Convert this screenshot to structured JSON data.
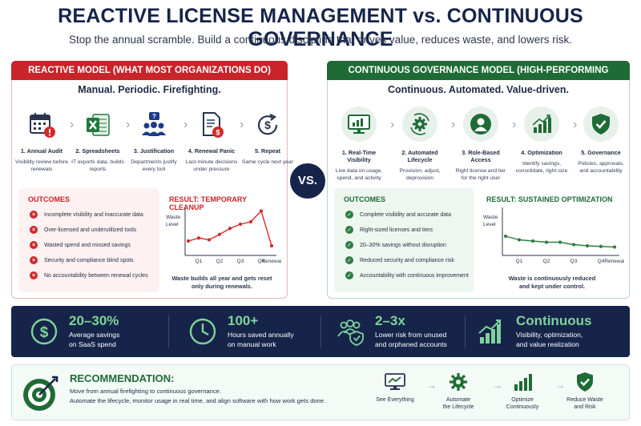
{
  "title": "REACTIVE LICENSE MANAGEMENT vs. CONTINUOUS GOVERNANCE",
  "subtitle": "Stop the annual scramble. Build a continuous discipline that drives value, reduces waste, and lowers risk.",
  "vs_label": "VS.",
  "reactive": {
    "header": "REACTIVE MODEL (WHAT MOST ORGANIZATIONS DO)",
    "tagline": "Manual. Periodic. Firefighting.",
    "steps": [
      {
        "title": "1. Annual Audit",
        "desc": "Visibility review before renewals",
        "icon": "calendar-alert-icon"
      },
      {
        "title": "2. Spreadsheets",
        "desc": "IT exports data, builds reports",
        "icon": "spreadsheet-icon"
      },
      {
        "title": "3. Justification",
        "desc": "Departments justify every tool",
        "icon": "question-team-icon"
      },
      {
        "title": "4. Renewal Panic",
        "desc": "Last-minute decisions under pressure",
        "icon": "invoice-dollar-icon"
      },
      {
        "title": "5. Repeat",
        "desc": "Same cycle next year",
        "icon": "dollar-cycle-icon"
      }
    ],
    "outcomes_title": "OUTCOMES",
    "outcomes": [
      "Incomplete visibility and inaccurate data",
      "Over-licensed and underutilized tools",
      "Wasted spend and missed savings",
      "Security and compliance blind spots",
      "No accountability between renewal cycles"
    ],
    "result_title": "RESULT: TEMPORARY CLEANUP",
    "result_caption_1": "Waste builds all year and gets reset",
    "result_caption_2": "only during renewals."
  },
  "continuous": {
    "header": "CONTINUOUS GOVERNANCE MODEL (HIGH-PERFORMING ORGANIZATIONS)",
    "tagline": "Continuous. Automated. Value-driven.",
    "steps": [
      {
        "title": "1. Real-Time Visibility",
        "desc": "Live data on usage, spend, and activity",
        "icon": "monitor-chart-icon"
      },
      {
        "title": "2. Automated Lifecycle",
        "desc": "Provision, adjust, deprovision",
        "icon": "gear-cycle-icon"
      },
      {
        "title": "3. Role-Based Access",
        "desc": "Right license and tier for the right user",
        "icon": "user-icon"
      },
      {
        "title": "4. Optimization",
        "desc": "Identify savings, consolidate, right-size",
        "icon": "growth-bars-icon"
      },
      {
        "title": "5. Governance",
        "desc": "Policies, approvals, and accountability",
        "icon": "shield-check-icon"
      }
    ],
    "outcomes_title": "OUTCOMES",
    "outcomes": [
      "Complete visibility and accurate data",
      "Right-sized licenses and tiers",
      "20–30% savings without disruption",
      "Reduced security and compliance risk",
      "Accountability with continuous improvement"
    ],
    "result_title": "RESULT: SUSTAINED OPTIMIZATION",
    "result_caption_1": "Waste is continuously reduced",
    "result_caption_2": "and kept under control."
  },
  "chart_data": [
    {
      "type": "line",
      "title": "RESULT: TEMPORARY CLEANUP",
      "ylabel": "Waste Level",
      "xlabel": "",
      "x": [
        "",
        "Q1",
        "",
        "Q2",
        "",
        "Q3",
        "",
        "Q4",
        "Renewal"
      ],
      "tick_labels": [
        "Q1",
        "Q2",
        "Q3",
        "Q4",
        "Renewal"
      ],
      "values": [
        2.4,
        2.9,
        2.6,
        3.5,
        4.5,
        5.2,
        5.6,
        7.4,
        1.6
      ],
      "ylim": [
        0,
        8
      ],
      "color": "#d42a2a"
    },
    {
      "type": "line",
      "title": "RESULT: SUSTAINED OPTIMIZATION",
      "ylabel": "Waste Level",
      "xlabel": "",
      "x": [
        "",
        "Q1",
        "",
        "Q2",
        "",
        "Q3",
        "",
        "Q4",
        "Renewal"
      ],
      "tick_labels": [
        "Q1",
        "Q2",
        "Q3",
        "Q4",
        "Renewal"
      ],
      "values": [
        3.2,
        2.6,
        2.4,
        2.2,
        2.2,
        1.8,
        1.6,
        1.5,
        1.4
      ],
      "ylim": [
        0,
        8
      ],
      "color": "#2e7d43"
    }
  ],
  "stats": [
    {
      "value": "20–30%",
      "label_1": "Average savings",
      "label_2": "on SaaS spend",
      "icon": "dollar-circle-icon"
    },
    {
      "value": "100+",
      "label_1": "Hours saved annually",
      "label_2": "on manual work",
      "icon": "clock-icon"
    },
    {
      "value": "2–3x",
      "label_1": "Lower risk from unused",
      "label_2": "and orphaned accounts",
      "icon": "team-shield-icon"
    },
    {
      "value": "Continuous",
      "label_1": "Visibility, optimization,",
      "label_2": "and value realization",
      "icon": "trend-bars-icon"
    }
  ],
  "recommendation": {
    "heading": "RECOMMENDATION:",
    "line_1": "Move from annual firefighting to continuous governance.",
    "line_2": "Automate the lifecycle, monitor usage in real time, and align software with how work gets done.",
    "flow": [
      {
        "label_1": "See Everything",
        "label_2": "",
        "icon": "monitor-icon"
      },
      {
        "label_1": "Automate",
        "label_2": "the Lifecycle",
        "icon": "gear-icon"
      },
      {
        "label_1": "Optimize",
        "label_2": "Continuously",
        "icon": "bars-icon"
      },
      {
        "label_1": "Reduce Waste",
        "label_2": "and Risk",
        "icon": "shield-check-icon"
      }
    ]
  }
}
